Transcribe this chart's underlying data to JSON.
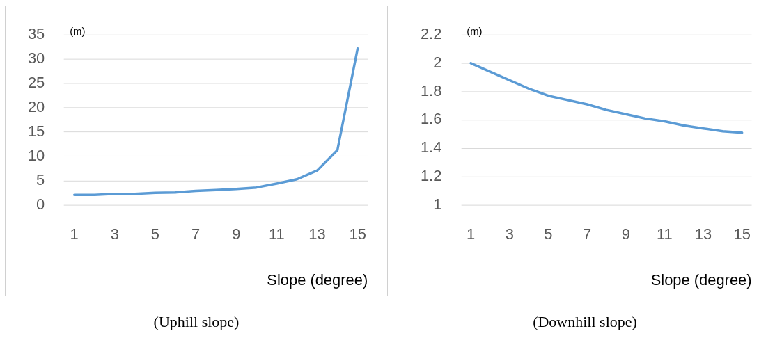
{
  "chart_data": [
    {
      "type": "line",
      "x": [
        1,
        2,
        3,
        4,
        5,
        6,
        7,
        8,
        9,
        10,
        11,
        12,
        13,
        14,
        15
      ],
      "xlabel": "Slope (degree)",
      "ylabel": "(m)",
      "series": [
        {
          "color": "#5b9bd5",
          "values": [
            2.1,
            2.1,
            2.3,
            2.3,
            2.5,
            2.6,
            2.9,
            3.1,
            3.3,
            3.6,
            4.4,
            5.3,
            7.1,
            11.3,
            32.2
          ]
        }
      ],
      "xlim": [
        0.5,
        15.5
      ],
      "xticks": [
        1,
        3,
        5,
        7,
        9,
        11,
        13,
        15
      ],
      "ylim": [
        0,
        35
      ],
      "yticks": [
        0,
        5,
        10,
        15,
        20,
        25,
        30,
        35
      ],
      "grid": "y",
      "legend": false,
      "marker": "none",
      "line_style": "solid",
      "annotations": [
        "(Uphill slope)"
      ]
    },
    {
      "type": "line",
      "x": [
        1,
        2,
        3,
        4,
        5,
        6,
        7,
        8,
        9,
        10,
        11,
        12,
        13,
        14,
        15
      ],
      "xlabel": "Slope (degree)",
      "ylabel": "(m)",
      "series": [
        {
          "color": "#5b9bd5",
          "values": [
            2.0,
            1.94,
            1.88,
            1.82,
            1.77,
            1.74,
            1.71,
            1.67,
            1.64,
            1.61,
            1.59,
            1.56,
            1.54,
            1.52,
            1.51
          ]
        }
      ],
      "xlim": [
        0.5,
        15.5
      ],
      "xticks": [
        1,
        3,
        5,
        7,
        9,
        11,
        13,
        15
      ],
      "ylim": [
        1,
        2.2
      ],
      "yticks": [
        1,
        1.2,
        1.4,
        1.6,
        1.8,
        2,
        2.2
      ],
      "grid": "y",
      "legend": false,
      "marker": "none",
      "line_style": "solid",
      "annotations": [
        "(Downhill slope)"
      ]
    }
  ]
}
